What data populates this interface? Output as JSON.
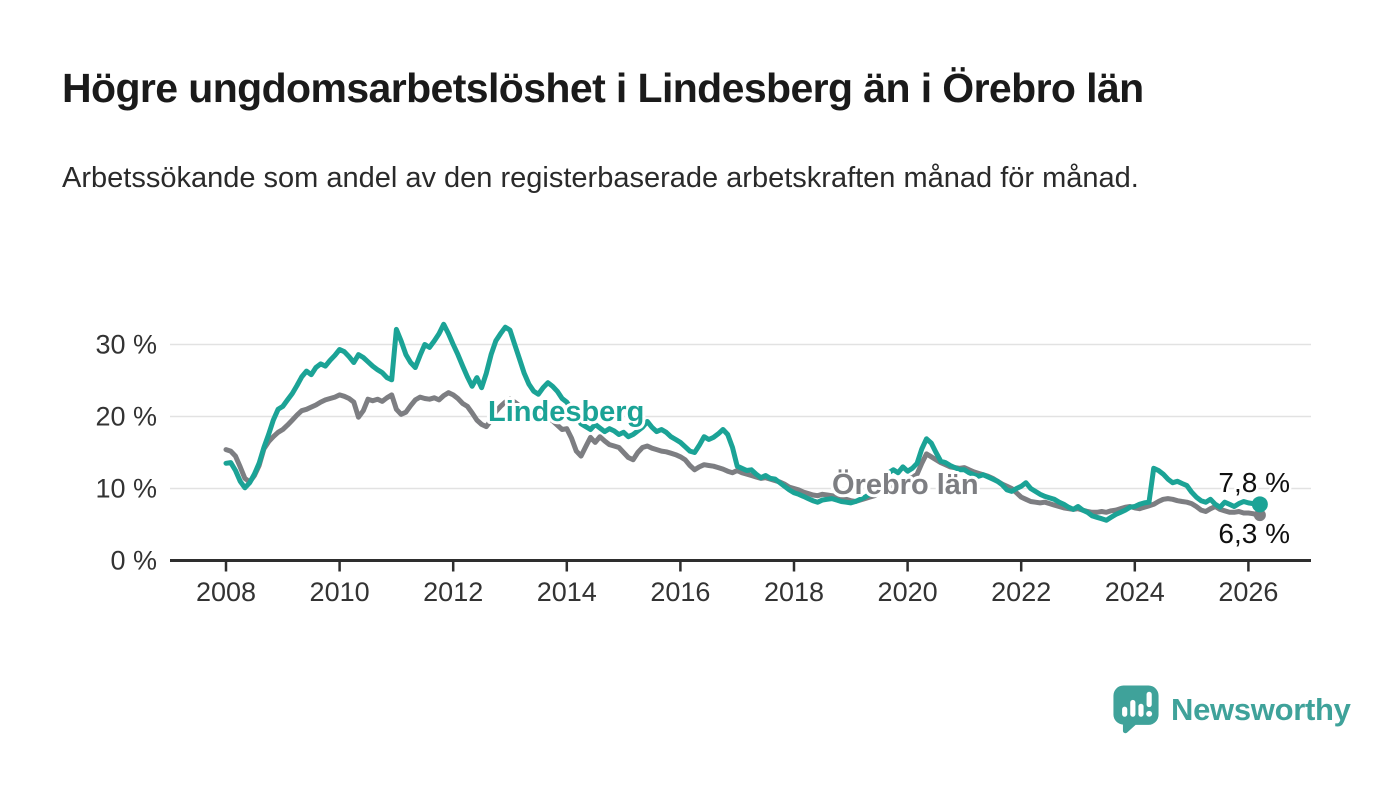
{
  "page": {
    "background": "#ffffff"
  },
  "header": {
    "title": "Högre ungdomsarbetslöshet i Lindesberg än i Örebro län",
    "subtitle": "Arbetssökande som andel av den registerbaserade arbetskraften månad för månad."
  },
  "footer": {
    "brand": {
      "name": "Newsworthy",
      "icon": "speech-bubble-bar-chart-icon",
      "color": "#3FA29A"
    }
  },
  "chart_data": {
    "type": "line",
    "unit": "%",
    "grid": "horizontal",
    "x_interval": "monthly",
    "x_start": {
      "year": 2008,
      "month": 1
    },
    "x_end": {
      "year": 2026,
      "month": 3
    },
    "x_tick_labels": [
      "2008",
      "2010",
      "2012",
      "2014",
      "2016",
      "2018",
      "2020",
      "2022",
      "2024",
      "2026"
    ],
    "y_ticks": [
      0,
      10,
      20,
      30
    ],
    "y_tick_labels": [
      "0 %",
      "10 %",
      "20 %",
      "30 %"
    ],
    "ylim": [
      0,
      34
    ],
    "colors": {
      "gridline": "#e2e2e2",
      "axis": "#2e2e2e",
      "tick_text": "#333333",
      "end_label_text": "#101010"
    },
    "series": [
      {
        "name": "Lindesberg",
        "color": "#1BA396",
        "end_label": "7,8 %",
        "end_value": 7.8,
        "values": [
          13.5,
          13.6,
          12.5,
          11.0,
          10.1,
          10.8,
          12.0,
          13.5,
          15.7,
          17.5,
          19.5,
          21.0,
          21.4,
          22.3,
          23.2,
          24.3,
          25.5,
          26.3,
          25.8,
          26.8,
          27.3,
          27.0,
          27.8,
          28.5,
          29.3,
          29.0,
          28.3,
          27.5,
          28.6,
          28.2,
          27.6,
          27.0,
          26.5,
          26.1,
          25.4,
          25.1,
          32.1,
          30.5,
          28.6,
          27.5,
          26.8,
          28.5,
          30.0,
          29.6,
          30.5,
          31.5,
          32.8,
          31.5,
          30.0,
          28.6,
          27.0,
          25.5,
          24.2,
          25.4,
          24.0,
          26.0,
          28.6,
          30.5,
          31.5,
          32.4,
          32.0,
          30.0,
          28.0,
          26.0,
          24.5,
          23.5,
          23.1,
          24.0,
          24.7,
          24.2,
          23.5,
          22.5,
          22.0,
          21.0,
          20.0,
          19.0,
          18.6,
          18.2,
          18.9,
          18.4,
          17.9,
          18.3,
          18.0,
          17.5,
          17.8,
          17.2,
          17.5,
          18.0,
          18.5,
          19.3,
          18.5,
          17.9,
          18.2,
          17.8,
          17.2,
          16.8,
          16.4,
          15.8,
          15.2,
          15.0,
          16.0,
          17.2,
          16.8,
          17.1,
          17.6,
          18.2,
          17.5,
          15.7,
          13.1,
          12.8,
          12.5,
          12.6,
          12.0,
          11.5,
          11.8,
          11.4,
          11.3,
          10.8,
          10.3,
          9.8,
          9.4,
          9.2,
          8.9,
          8.6,
          8.3,
          8.1,
          8.4,
          8.5,
          8.6,
          8.4,
          8.2,
          8.1,
          8.0,
          8.2,
          8.5,
          8.8,
          9.2,
          9.6,
          10.4,
          11.4,
          12.2,
          12.6,
          12.2,
          13.0,
          12.4,
          12.8,
          13.5,
          15.5,
          16.9,
          16.3,
          15.0,
          13.8,
          13.6,
          13.2,
          12.9,
          12.6,
          12.6,
          12.2,
          11.9,
          11.7,
          11.9,
          11.6,
          11.3,
          11.0,
          10.5,
          9.8,
          9.6,
          10.0,
          10.3,
          10.8,
          10.0,
          9.6,
          9.2,
          8.9,
          8.7,
          8.5,
          8.1,
          7.8,
          7.4,
          7.1,
          7.5,
          7.0,
          6.7,
          6.2,
          6.0,
          5.8,
          5.6,
          6.0,
          6.4,
          6.7,
          7.0,
          7.4,
          7.5,
          7.8,
          8.0,
          8.1,
          12.8,
          12.5,
          12.0,
          11.3,
          10.8,
          11.0,
          10.7,
          10.4,
          9.5,
          8.8,
          8.3,
          8.1,
          8.5,
          7.8,
          7.4,
          8.1,
          7.8,
          7.5,
          7.9,
          8.2,
          8.0,
          7.9,
          7.8
        ]
      },
      {
        "name": "Örebro län",
        "color": "#7D7E82",
        "end_label": "6,3 %",
        "end_value": 6.3,
        "values": [
          15.4,
          15.2,
          14.5,
          13.0,
          11.4,
          10.9,
          11.8,
          13.2,
          15.5,
          16.5,
          17.2,
          17.8,
          18.2,
          18.8,
          19.5,
          20.2,
          20.8,
          21.0,
          21.3,
          21.6,
          22.0,
          22.3,
          22.5,
          22.7,
          23.0,
          22.8,
          22.5,
          22.0,
          19.9,
          20.8,
          22.4,
          22.2,
          22.4,
          22.1,
          22.6,
          23.0,
          21.0,
          20.3,
          20.6,
          21.5,
          22.3,
          22.7,
          22.5,
          22.4,
          22.6,
          22.3,
          22.9,
          23.3,
          23.0,
          22.5,
          21.8,
          21.4,
          20.5,
          19.5,
          18.9,
          18.6,
          19.5,
          20.7,
          21.4,
          22.0,
          22.4,
          22.0,
          21.5,
          21.0,
          20.8,
          20.5,
          20.2,
          20.0,
          19.8,
          19.4,
          18.8,
          18.2,
          18.3,
          17.0,
          15.2,
          14.5,
          15.8,
          17.1,
          16.4,
          17.2,
          16.6,
          16.1,
          15.9,
          15.7,
          15.0,
          14.3,
          14.0,
          15.0,
          15.7,
          15.9,
          15.6,
          15.4,
          15.2,
          15.1,
          14.9,
          14.7,
          14.4,
          14.0,
          13.2,
          12.6,
          13.0,
          13.3,
          13.2,
          13.1,
          12.9,
          12.7,
          12.4,
          12.2,
          12.5,
          12.2,
          12.0,
          11.8,
          11.6,
          11.4,
          11.5,
          11.3,
          11.1,
          10.9,
          10.6,
          10.2,
          10.0,
          9.8,
          9.5,
          9.3,
          9.1,
          9.0,
          9.2,
          9.1,
          9.0,
          8.9,
          8.7,
          8.5,
          8.3,
          8.2,
          8.4,
          8.6,
          8.8,
          9.0,
          9.4,
          9.8,
          10.2,
          10.6,
          10.9,
          11.1,
          11.3,
          11.5,
          12.0,
          13.5,
          14.8,
          14.4,
          14.0,
          13.6,
          13.3,
          13.0,
          12.9,
          12.8,
          12.9,
          12.6,
          12.3,
          12.1,
          11.9,
          11.7,
          11.4,
          11.0,
          10.6,
          10.3,
          10.0,
          9.4,
          8.8,
          8.5,
          8.2,
          8.1,
          8.0,
          8.1,
          7.9,
          7.7,
          7.5,
          7.3,
          7.2,
          7.1,
          7.2,
          7.0,
          6.8,
          6.7,
          6.7,
          6.8,
          6.7,
          6.9,
          7.0,
          7.2,
          7.4,
          7.5,
          7.3,
          7.2,
          7.4,
          7.6,
          7.8,
          8.2,
          8.5,
          8.6,
          8.5,
          8.3,
          8.2,
          8.1,
          7.9,
          7.5,
          7.0,
          6.8,
          7.2,
          7.5,
          7.1,
          6.9,
          6.7,
          6.7,
          6.8,
          6.6,
          6.6,
          6.5,
          6.3
        ]
      }
    ]
  }
}
